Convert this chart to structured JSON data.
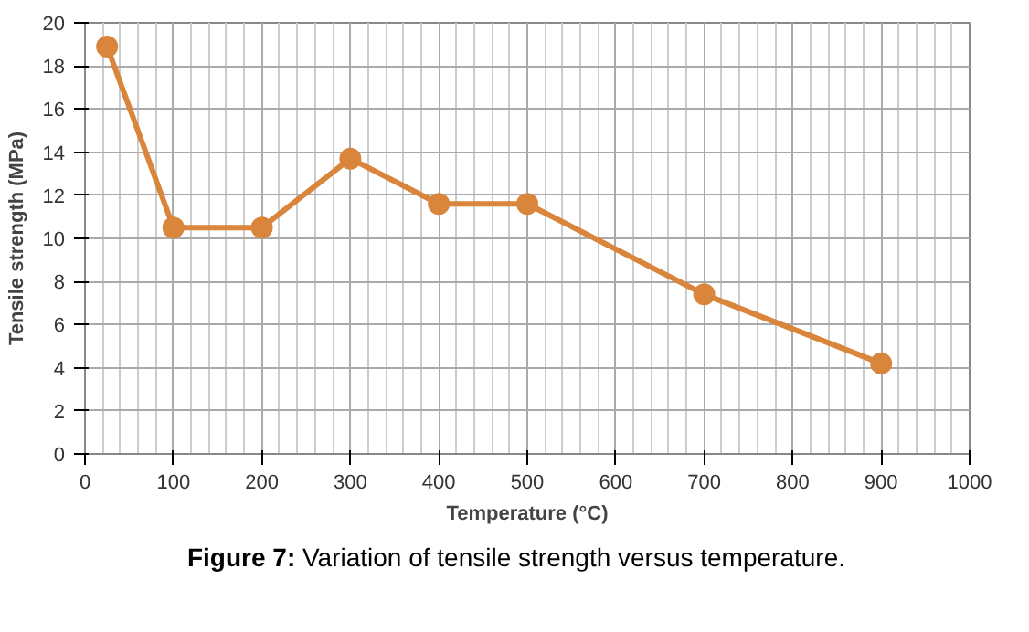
{
  "chart_data": {
    "type": "line",
    "xlabel": "Temperature (°C)",
    "ylabel": "Tensile strength (MPa)",
    "x": [
      25,
      100,
      200,
      300,
      400,
      500,
      700,
      900
    ],
    "series": [
      {
        "color": "#d9853b",
        "values": [
          18.9,
          10.5,
          10.5,
          13.7,
          11.6,
          11.6,
          7.4,
          4.2
        ]
      }
    ],
    "xlim": [
      0,
      1000
    ],
    "xticks": [
      0,
      100,
      200,
      300,
      400,
      500,
      600,
      700,
      800,
      900,
      1000
    ],
    "ylim": [
      0,
      20
    ],
    "yticks": [
      0,
      2,
      4,
      6,
      8,
      10,
      12,
      14,
      16,
      18,
      20
    ],
    "grid": true,
    "marker": "circle",
    "line_style": "solid",
    "annotations": [
      "Figure 7: Variation of tensile strength versus temperature."
    ]
  }
}
